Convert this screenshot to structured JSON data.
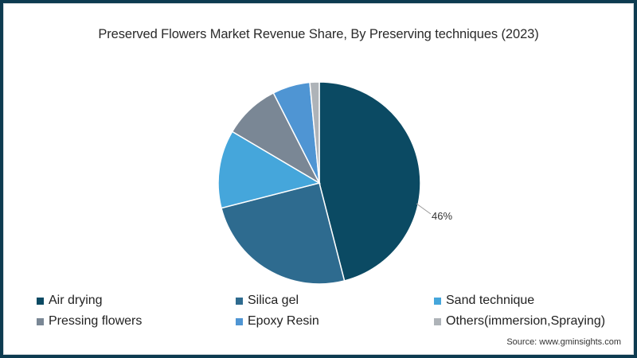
{
  "title": "Preserved Flowers Market Revenue Share, By Preserving techniques (2023)",
  "source": "Source: www.gminsights.com",
  "colors": {
    "frame": "#0d3b50",
    "air_drying": "#0b4a63",
    "silica_gel": "#2e6b8f",
    "sand_technique": "#45a6db",
    "pressing_flowers": "#7a8795",
    "epoxy_resin": "#4f95d3",
    "others": "#aeb3b8"
  },
  "chart_data": {
    "type": "pie",
    "title": "Preserved Flowers Market Revenue Share, By Preserving techniques (2023)",
    "categories": [
      "Air drying",
      "Silica gel",
      "Sand technique",
      "Pressing flowers",
      "Epoxy Resin",
      "Others(immersion,Spraying)"
    ],
    "values": [
      46,
      25,
      12.5,
      9,
      6,
      1.5
    ],
    "unit": "%",
    "data_labels": [
      {
        "category": "Air drying",
        "text": "46%"
      }
    ],
    "start_angle_deg": 0,
    "direction": "clockwise",
    "legend_position": "bottom"
  },
  "legend": [
    {
      "label": "Air drying",
      "color": "#0b4a63"
    },
    {
      "label": "Silica gel",
      "color": "#2e6b8f"
    },
    {
      "label": "Sand technique",
      "color": "#45a6db"
    },
    {
      "label": "Pressing flowers",
      "color": "#7a8795"
    },
    {
      "label": "Epoxy Resin",
      "color": "#4f95d3"
    },
    {
      "label": "Others(immersion,Spraying)",
      "color": "#aeb3b8"
    }
  ],
  "labels": {
    "air_drying_pct": "46%"
  }
}
